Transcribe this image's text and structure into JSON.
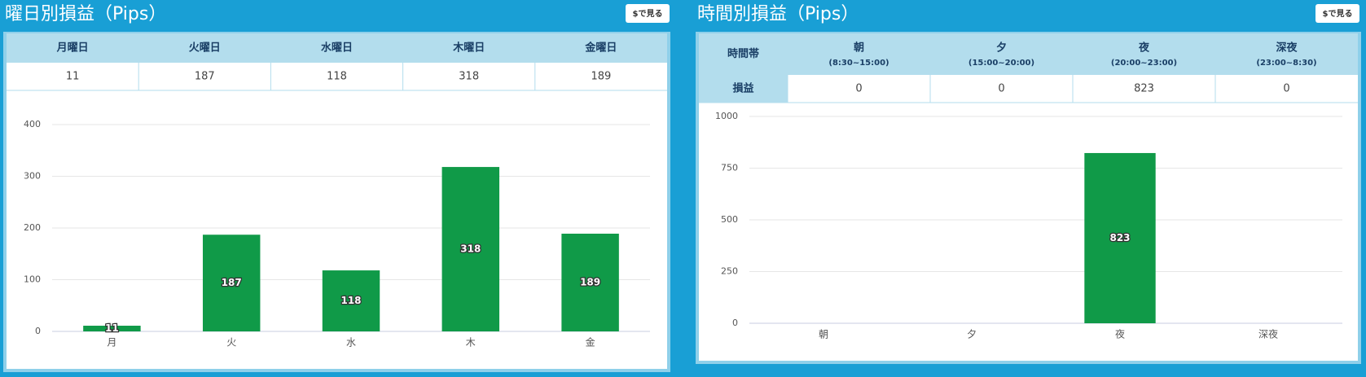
{
  "panels": [
    {
      "title": "曜日別損益（Pips）",
      "button": "$で見る",
      "table": {
        "header": [
          "月曜日",
          "火曜日",
          "水曜日",
          "木曜日",
          "金曜日"
        ]
      }
    },
    {
      "title": "時間別損益（Pips）",
      "button": "$で見る",
      "table": {
        "corner": "時間帯",
        "row_label": "損益",
        "header": [
          {
            "name": "朝",
            "sub": "(8:30~15:00)"
          },
          {
            "name": "夕",
            "sub": "(15:00~20:00)"
          },
          {
            "name": "夜",
            "sub": "(20:00~23:00)"
          },
          {
            "name": "深夜",
            "sub": "(23:00~8:30)"
          }
        ]
      }
    }
  ],
  "chart_data": [
    {
      "type": "bar",
      "categories": [
        "月",
        "火",
        "水",
        "木",
        "金"
      ],
      "values": [
        11,
        187,
        118,
        318,
        189
      ],
      "ylim": [
        0,
        400
      ],
      "yticks": [
        0,
        100,
        200,
        300,
        400
      ],
      "color": "#109a48",
      "grid": true
    },
    {
      "type": "bar",
      "categories": [
        "朝",
        "夕",
        "夜",
        "深夜"
      ],
      "values": [
        0,
        0,
        823,
        0
      ],
      "ylim": [
        0,
        1000
      ],
      "yticks": [
        0,
        250,
        500,
        750,
        1000
      ],
      "color": "#109a48",
      "grid": true
    }
  ]
}
